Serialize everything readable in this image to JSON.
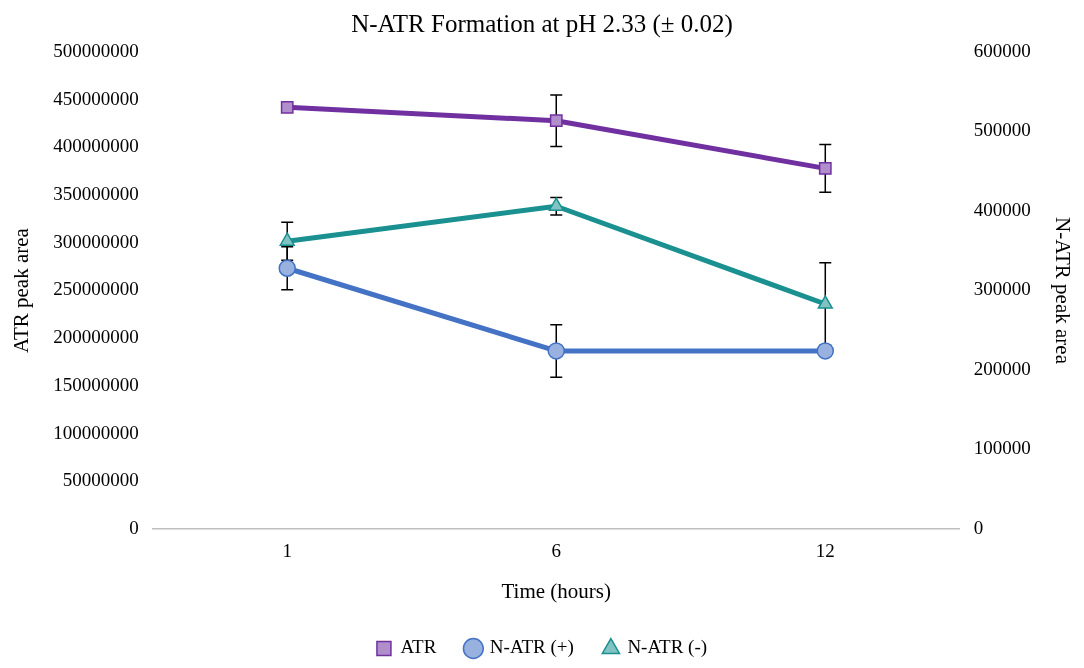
{
  "chart_data": {
    "type": "line",
    "title": "N-ATR Formation at pH 2.33 (± 0.02)",
    "xlabel": "Time (hours)",
    "ylabel": "ATR peak area",
    "y2label": "N-ATR peak area",
    "categories": [
      "1",
      "6",
      "12"
    ],
    "series": [
      {
        "name": "ATR",
        "color": "#7030a0",
        "marker": "square",
        "values": [
          442000000,
          428000000,
          378000000
        ],
        "errors": [
          null,
          27000000,
          25000000
        ]
      },
      {
        "name": "N-ATR (+)",
        "color": "#4472c4",
        "marker": "circle",
        "axis": "y2",
        "values": [
          328000,
          224000,
          224000
        ],
        "errors": [
          27000,
          33000,
          null
        ]
      },
      {
        "name": "N-ATR (-)",
        "color": "#1a9090",
        "marker": "triangle",
        "axis": "y2",
        "values": [
          362000,
          406000,
          283000
        ],
        "errors": [
          24000,
          11000,
          52000
        ]
      }
    ],
    "ylim": [
      0,
      500000000
    ],
    "yticks": [
      0,
      50000000,
      100000000,
      150000000,
      200000000,
      250000000,
      300000000,
      350000000,
      400000000,
      450000000,
      500000000
    ],
    "y2lim": [
      0,
      600000
    ],
    "y2ticks": [
      0,
      100000,
      200000,
      300000,
      400000,
      500000,
      600000
    ],
    "grid": false,
    "legend": "bottom",
    "line_style": "solid"
  }
}
